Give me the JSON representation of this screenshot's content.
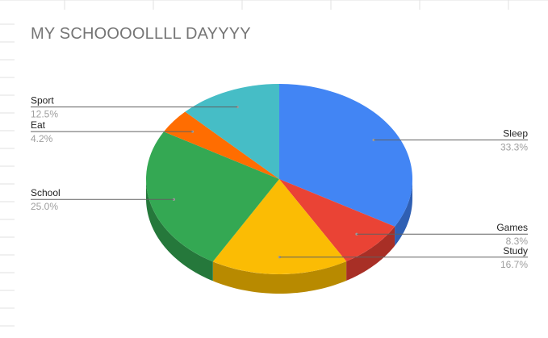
{
  "chart_data": {
    "type": "pie",
    "title": "MY SCHOOOOLLLL DAYYYY",
    "slices": [
      {
        "label": "Sleep",
        "value": 33.3,
        "percent": "33.3%",
        "color": "#4285f4",
        "side_color": "#2f5fb3"
      },
      {
        "label": "Games",
        "value": 8.3,
        "percent": "8.3%",
        "color": "#ea4335",
        "side_color": "#a82f26"
      },
      {
        "label": "Study",
        "value": 16.7,
        "percent": "16.7%",
        "color": "#fbbc04",
        "side_color": "#b88a00"
      },
      {
        "label": "School",
        "value": 25.0,
        "percent": "25.0%",
        "color": "#34a853",
        "side_color": "#25783b"
      },
      {
        "label": "Eat",
        "value": 4.2,
        "percent": "4.2%",
        "color": "#ff6d01",
        "side_color": "#b84e01"
      },
      {
        "label": "Sport",
        "value": 12.5,
        "percent": "12.5%",
        "color": "#46bdc6",
        "side_color": "#32878e"
      }
    ],
    "style": "3d",
    "legend": "labeled leader lines"
  }
}
